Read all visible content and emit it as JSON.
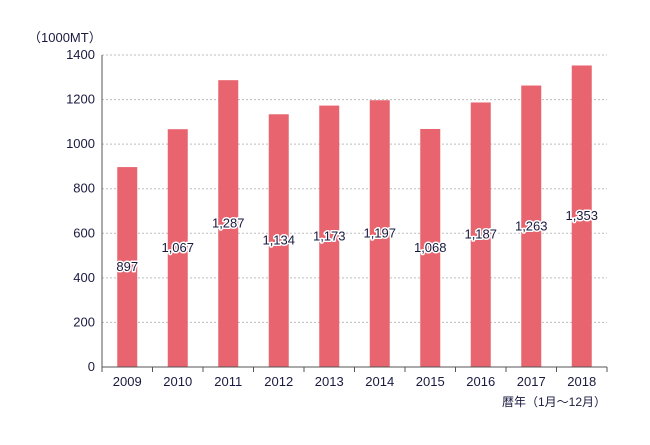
{
  "chart_data": {
    "type": "bar",
    "unit_label": "（1000MT）",
    "xlabel": "暦年（1月〜12月）",
    "ylabel": "",
    "ylim": [
      0,
      1400
    ],
    "yticks": [
      0,
      200,
      400,
      600,
      800,
      1000,
      1200,
      1400
    ],
    "categories": [
      "2009",
      "2010",
      "2011",
      "2012",
      "2013",
      "2014",
      "2015",
      "2016",
      "2017",
      "2018"
    ],
    "values": [
      897,
      1067,
      1287,
      1134,
      1173,
      1197,
      1068,
      1187,
      1263,
      1353
    ],
    "data_labels": [
      "897",
      "1,067",
      "1,287",
      "1,134",
      "1,173",
      "1,197",
      "1,068",
      "1,187",
      "1,263",
      "1,353"
    ],
    "grid": true,
    "bar_color": "#e8646e",
    "grid_color": "#bdbdbd",
    "text_color": "#1a1a40"
  }
}
